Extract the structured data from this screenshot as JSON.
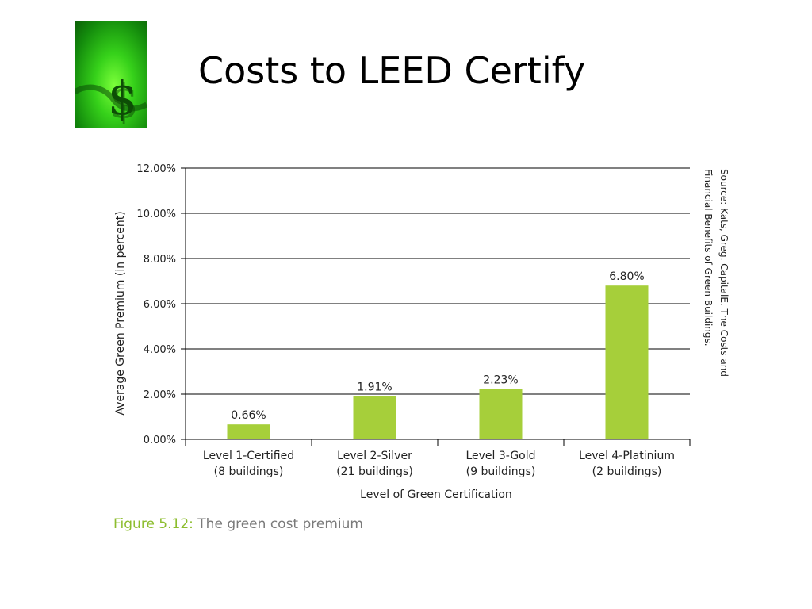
{
  "slide": {
    "title": "Costs to LEED Certify",
    "logo_icon": "dollar-sign-icon",
    "logo_glyph": "$"
  },
  "figure": {
    "caption_label": "Figure 5.12:",
    "caption_text": "The green cost premium",
    "source": "Source: Kats, Greg. CapitalE. The Costs and Financial Benefits of Green Buildings."
  },
  "chart_data": {
    "type": "bar",
    "categories": [
      [
        "Level 1-Certified",
        "(8 buildings)"
      ],
      [
        "Level 2-Silver",
        "(21 buildings)"
      ],
      [
        "Level 3-Gold",
        "(9 buildings)"
      ],
      [
        "Level 4-Platinium",
        "(2 buildings)"
      ]
    ],
    "values": [
      0.66,
      1.91,
      2.23,
      6.8
    ],
    "data_labels": [
      "0.66%",
      "1.91%",
      "2.23%",
      "6.80%"
    ],
    "xlabel": "Level of Green Certification",
    "ylabel": "Average Green Premium (in percent)",
    "ylim": [
      0,
      12
    ],
    "yticks": [
      0,
      2,
      4,
      6,
      8,
      10,
      12
    ],
    "ytick_labels": [
      "0.00%",
      "2.00%",
      "4.00%",
      "6.00%",
      "8.00%",
      "10.00%",
      "12.00%"
    ],
    "grid": true,
    "bar_color": "#a6cf3a"
  }
}
